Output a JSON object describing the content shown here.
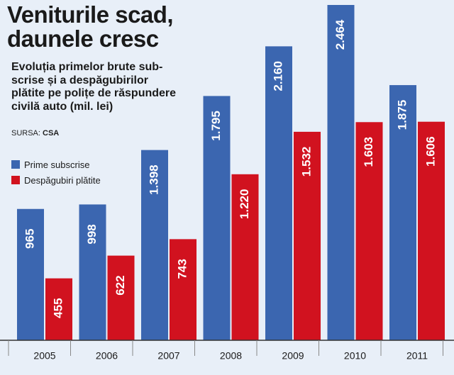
{
  "header": {
    "title": "Veniturile scad,\ndaunele cresc",
    "subtitle": "Evoluția primelor brute sub-\nscrise și a despăgubirilor\nplătite pe polițe de răspundere\ncivilă auto (mil. lei)",
    "source_label": "SURSA:",
    "source_name": "CSA"
  },
  "colors": {
    "background": "#e8eff8",
    "premiums": "#3b66b0",
    "claims": "#d1121f",
    "axis": "#333333"
  },
  "chart_data": {
    "type": "bar",
    "title": "Veniturile scad, daunele cresc",
    "xlabel": "",
    "ylabel": "mil. lei",
    "categories": [
      "2005",
      "2006",
      "2007",
      "2008",
      "2009",
      "2010",
      "2011"
    ],
    "series": [
      {
        "name": "Prime subscrise",
        "color": "#3b66b0",
        "values": [
          965,
          998,
          1398,
          1795,
          2160,
          2464,
          1875
        ],
        "labels": [
          "965",
          "998",
          "1.398",
          "1.795",
          "2.160",
          "2.464",
          "1.875"
        ]
      },
      {
        "name": "Despăgubiri plătite",
        "color": "#d1121f",
        "values": [
          455,
          622,
          743,
          1220,
          1532,
          1603,
          1606
        ],
        "labels": [
          "455",
          "622",
          "743",
          "1.220",
          "1.532",
          "1.603",
          "1.606"
        ]
      }
    ],
    "ylim": [
      0,
      2500
    ],
    "grid": false,
    "legend": "left"
  }
}
